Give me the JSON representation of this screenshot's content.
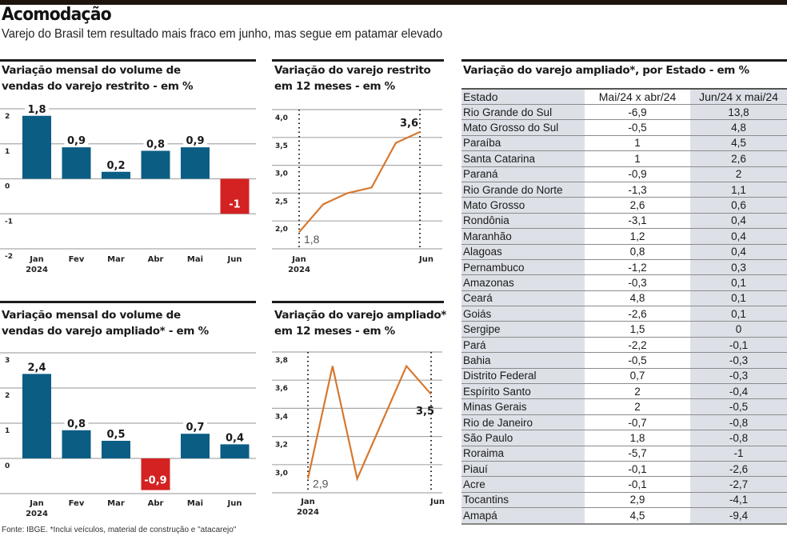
{
  "header": {
    "title": "Acomodação",
    "subtitle": "Varejo do Brasil tem resultado mais fraco em junho, mas segue em patamar elevado"
  },
  "footer": "Fonte: IBGE. *Inclui veículos, material de construção e \"atacarejo\"",
  "colors": {
    "positive_bar": "#0b5d84",
    "negative_bar": "#d42222",
    "line": "#d7782f",
    "grid": "#a9a9a9"
  },
  "chart_data": [
    {
      "id": "restrito_mensal",
      "type": "bar",
      "title_line1": "Variação mensal do volume de",
      "title_line2": "vendas do varejo restrito - em %",
      "categories": [
        "Jan",
        "Fev",
        "Mar",
        "Abr",
        "Mai",
        "Jun"
      ],
      "year_label": "2024",
      "values": [
        1.8,
        0.9,
        0.2,
        0.8,
        0.9,
        -1
      ],
      "value_labels": [
        "1,8",
        "0,9",
        "0,2",
        "0,8",
        "0,9",
        "-1"
      ],
      "yticks": [
        2,
        1,
        0,
        -1,
        -2
      ],
      "ytick_labels": [
        "2",
        "1",
        "0",
        "-1",
        "-2"
      ],
      "ylim": [
        -2,
        2
      ],
      "grid": true
    },
    {
      "id": "restrito_12m",
      "type": "line",
      "title_line1": "Variação do varejo restrito",
      "title_line2": "em 12 meses - em %",
      "categories": [
        "Jan",
        "Fev",
        "Mar",
        "Abr",
        "Mai",
        "Jun"
      ],
      "tick_labels_shown": [
        "Jan",
        "Jun"
      ],
      "year_label": "2024",
      "values": [
        1.8,
        2.3,
        2.5,
        2.6,
        3.4,
        3.6
      ],
      "start_label": "1,8",
      "end_label": "3,6",
      "yticks": [
        4.0,
        3.5,
        3.0,
        2.5,
        2.0
      ],
      "ytick_labels": [
        "4,0",
        "3,5",
        "3,0",
        "2,5",
        "2,0"
      ],
      "ylim": [
        1.5,
        4.0
      ],
      "grid": true
    },
    {
      "id": "ampliado_mensal",
      "type": "bar",
      "title_line1": "Variação mensal do volume de",
      "title_line2": "vendas do varejo ampliado* - em %",
      "categories": [
        "Jan",
        "Fev",
        "Mar",
        "Abr",
        "Mai",
        "Jun"
      ],
      "year_label": "2024",
      "values": [
        2.4,
        0.8,
        0.5,
        -0.9,
        0.7,
        0.4
      ],
      "value_labels": [
        "2,4",
        "0,8",
        "0,5",
        "-0,9",
        "0,7",
        "0,4"
      ],
      "yticks": [
        3,
        2,
        1,
        0
      ],
      "ytick_labels": [
        "3",
        "2",
        "1",
        "0"
      ],
      "ylim": [
        -1,
        3
      ],
      "grid": true
    },
    {
      "id": "ampliado_12m",
      "type": "line",
      "title_line1": "Variação do varejo ampliado*",
      "title_line2": "em 12 meses - em %",
      "categories": [
        "Jan",
        "Fev",
        "Mar",
        "Abr",
        "Mai",
        "Jun"
      ],
      "tick_labels_shown": [
        "Jan",
        "Jun"
      ],
      "year_label": "2024",
      "values": [
        2.9,
        3.7,
        2.9,
        3.3,
        3.7,
        3.5
      ],
      "start_label": "2,9",
      "end_label": "3,5",
      "yticks": [
        3.8,
        3.6,
        3.4,
        3.2,
        3.0
      ],
      "ytick_labels": [
        "3,8",
        "3,6",
        "3,4",
        "3,2",
        "3,0"
      ],
      "ylim": [
        2.8,
        3.8
      ],
      "grid": true
    },
    {
      "id": "ampliado_estados",
      "type": "table",
      "title": "Variação do varejo ampliado*, por Estado - em %",
      "columns": [
        "Estado",
        "Mai/24 x abr/24",
        "Jun/24 x mai/24"
      ],
      "rows": [
        [
          "Rio Grande do Sul",
          "-6,9",
          "13,8"
        ],
        [
          "Mato Grosso do Sul",
          "-0,5",
          "4,8"
        ],
        [
          "Paraíba",
          "1",
          "4,5"
        ],
        [
          "Santa Catarina",
          "1",
          "2,6"
        ],
        [
          "Paraná",
          "-0,9",
          "2"
        ],
        [
          "Rio Grande do Norte",
          "-1,3",
          "1,1"
        ],
        [
          "Mato Grosso",
          "2,6",
          "0,6"
        ],
        [
          "Rondônia",
          "-3,1",
          "0,4"
        ],
        [
          "Maranhão",
          "1,2",
          "0,4"
        ],
        [
          "Alagoas",
          "0,8",
          "0,4"
        ],
        [
          "Pernambuco",
          "-1,2",
          "0,3"
        ],
        [
          "Amazonas",
          "-0,3",
          "0,1"
        ],
        [
          "Ceará",
          "4,8",
          "0,1"
        ],
        [
          "Goiás",
          "-2,6",
          "0,1"
        ],
        [
          "Sergipe",
          "1,5",
          "0"
        ],
        [
          "Pará",
          "-2,2",
          "-0,1"
        ],
        [
          "Bahia",
          "-0,5",
          "-0,3"
        ],
        [
          "Distrito Federal",
          "0,7",
          "-0,3"
        ],
        [
          "Espírito Santo",
          "2",
          "-0,4"
        ],
        [
          "Minas Gerais",
          "2",
          "-0,5"
        ],
        [
          "Rio de Janeiro",
          "-0,7",
          "-0,8"
        ],
        [
          "São Paulo",
          "1,8",
          "-0,8"
        ],
        [
          "Roraima",
          "-5,7",
          "-1"
        ],
        [
          "Piauí",
          "-0,1",
          "-2,6"
        ],
        [
          "Acre",
          "-0,1",
          "-2,7"
        ],
        [
          "Tocantins",
          "2,9",
          "-4,1"
        ],
        [
          "Amapá",
          "4,5",
          "-9,4"
        ]
      ]
    }
  ]
}
